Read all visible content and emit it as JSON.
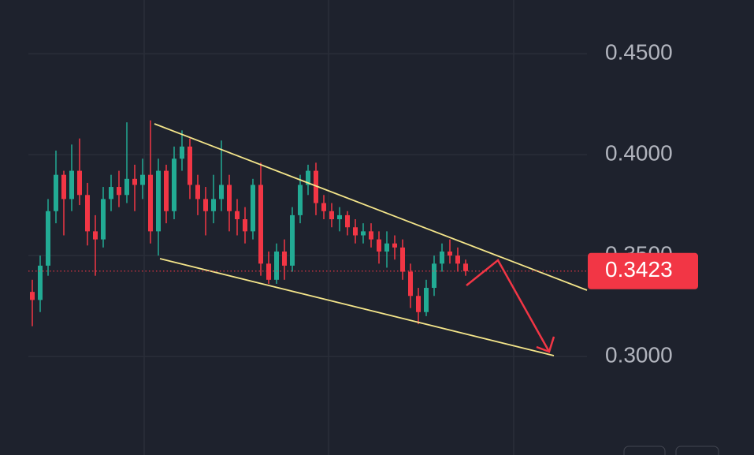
{
  "chart_data": {
    "type": "candlestick",
    "up_color": "#22ab94",
    "down_color": "#f23645",
    "ylim": [
      0.2512,
      0.4766
    ],
    "yticks": [
      {
        "value": 0.3,
        "label": "0.3000"
      },
      {
        "value": 0.35,
        "label": "0.3500"
      },
      {
        "value": 0.4,
        "label": "0.4000"
      },
      {
        "value": 0.45,
        "label": "0.4500"
      }
    ],
    "grid": true,
    "last_price": 0.3423,
    "open": [
      0.332,
      0.328,
      0.345,
      0.372,
      0.39,
      0.378,
      0.392,
      0.38,
      0.362,
      0.358,
      0.378,
      0.384,
      0.38,
      0.388,
      0.385,
      0.39,
      0.362,
      0.392,
      0.372,
      0.398,
      0.404,
      0.385,
      0.378,
      0.372,
      0.378,
      0.385,
      0.372,
      0.368,
      0.362,
      0.385,
      0.346,
      0.338,
      0.352,
      0.345,
      0.37,
      0.385,
      0.392,
      0.376,
      0.372,
      0.368,
      0.37,
      0.364,
      0.36,
      0.362,
      0.358,
      0.352,
      0.356,
      0.354,
      0.342,
      0.33,
      0.322,
      0.334,
      0.346,
      0.352,
      0.35,
      0.346
    ],
    "high": [
      0.338,
      0.35,
      0.378,
      0.402,
      0.392,
      0.405,
      0.408,
      0.386,
      0.37,
      0.384,
      0.39,
      0.392,
      0.416,
      0.395,
      0.398,
      0.417,
      0.398,
      0.395,
      0.404,
      0.412,
      0.408,
      0.39,
      0.384,
      0.39,
      0.407,
      0.39,
      0.378,
      0.374,
      0.388,
      0.396,
      0.352,
      0.356,
      0.358,
      0.374,
      0.39,
      0.395,
      0.396,
      0.38,
      0.376,
      0.374,
      0.372,
      0.368,
      0.366,
      0.366,
      0.362,
      0.362,
      0.36,
      0.358,
      0.346,
      0.334,
      0.338,
      0.35,
      0.356,
      0.358,
      0.354,
      0.348
    ],
    "low": [
      0.315,
      0.322,
      0.34,
      0.366,
      0.36,
      0.372,
      0.375,
      0.355,
      0.34,
      0.354,
      0.372,
      0.374,
      0.376,
      0.372,
      0.378,
      0.356,
      0.35,
      0.366,
      0.368,
      0.392,
      0.378,
      0.37,
      0.36,
      0.366,
      0.372,
      0.362,
      0.36,
      0.356,
      0.358,
      0.34,
      0.336,
      0.336,
      0.338,
      0.342,
      0.366,
      0.38,
      0.37,
      0.368,
      0.364,
      0.362,
      0.36,
      0.356,
      0.356,
      0.354,
      0.346,
      0.344,
      0.348,
      0.338,
      0.324,
      0.316,
      0.32,
      0.33,
      0.342,
      0.346,
      0.342,
      0.34
    ],
    "close": [
      0.328,
      0.345,
      0.372,
      0.39,
      0.378,
      0.392,
      0.38,
      0.362,
      0.358,
      0.378,
      0.384,
      0.38,
      0.388,
      0.385,
      0.39,
      0.362,
      0.392,
      0.372,
      0.398,
      0.404,
      0.385,
      0.378,
      0.372,
      0.378,
      0.385,
      0.372,
      0.368,
      0.362,
      0.385,
      0.346,
      0.338,
      0.352,
      0.345,
      0.37,
      0.385,
      0.392,
      0.376,
      0.372,
      0.368,
      0.37,
      0.364,
      0.36,
      0.362,
      0.358,
      0.352,
      0.356,
      0.354,
      0.342,
      0.33,
      0.322,
      0.334,
      0.346,
      0.352,
      0.35,
      0.346,
      0.3423
    ]
  }
}
